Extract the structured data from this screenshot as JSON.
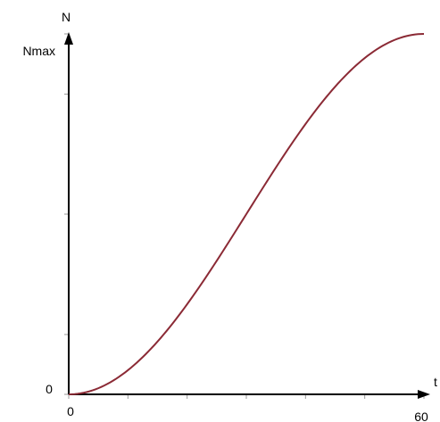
{
  "chart_data": {
    "type": "line",
    "x_axis": {
      "label": "t",
      "origin_label": "0",
      "end_label": "60",
      "range": [
        0,
        60
      ]
    },
    "y_axis": {
      "label": "N",
      "origin_label": "0",
      "max_label": "Nmax",
      "range": [
        0,
        1
      ]
    },
    "series": [
      {
        "color": "#8b2a35",
        "shape": "S-curve from 0 to Nmax",
        "x": [
          0,
          5,
          10,
          15,
          20,
          25,
          30,
          35,
          40,
          45,
          50,
          55,
          60
        ],
        "y": [
          0,
          0.017,
          0.067,
          0.146,
          0.25,
          0.371,
          0.5,
          0.629,
          0.75,
          0.854,
          0.933,
          0.983,
          1
        ]
      }
    ],
    "grid": false,
    "x_ticks": [
      0,
      10,
      20,
      30,
      40,
      50,
      60
    ],
    "y_ticks": [
      0,
      0.166,
      0.5,
      0.833,
      1
    ]
  }
}
